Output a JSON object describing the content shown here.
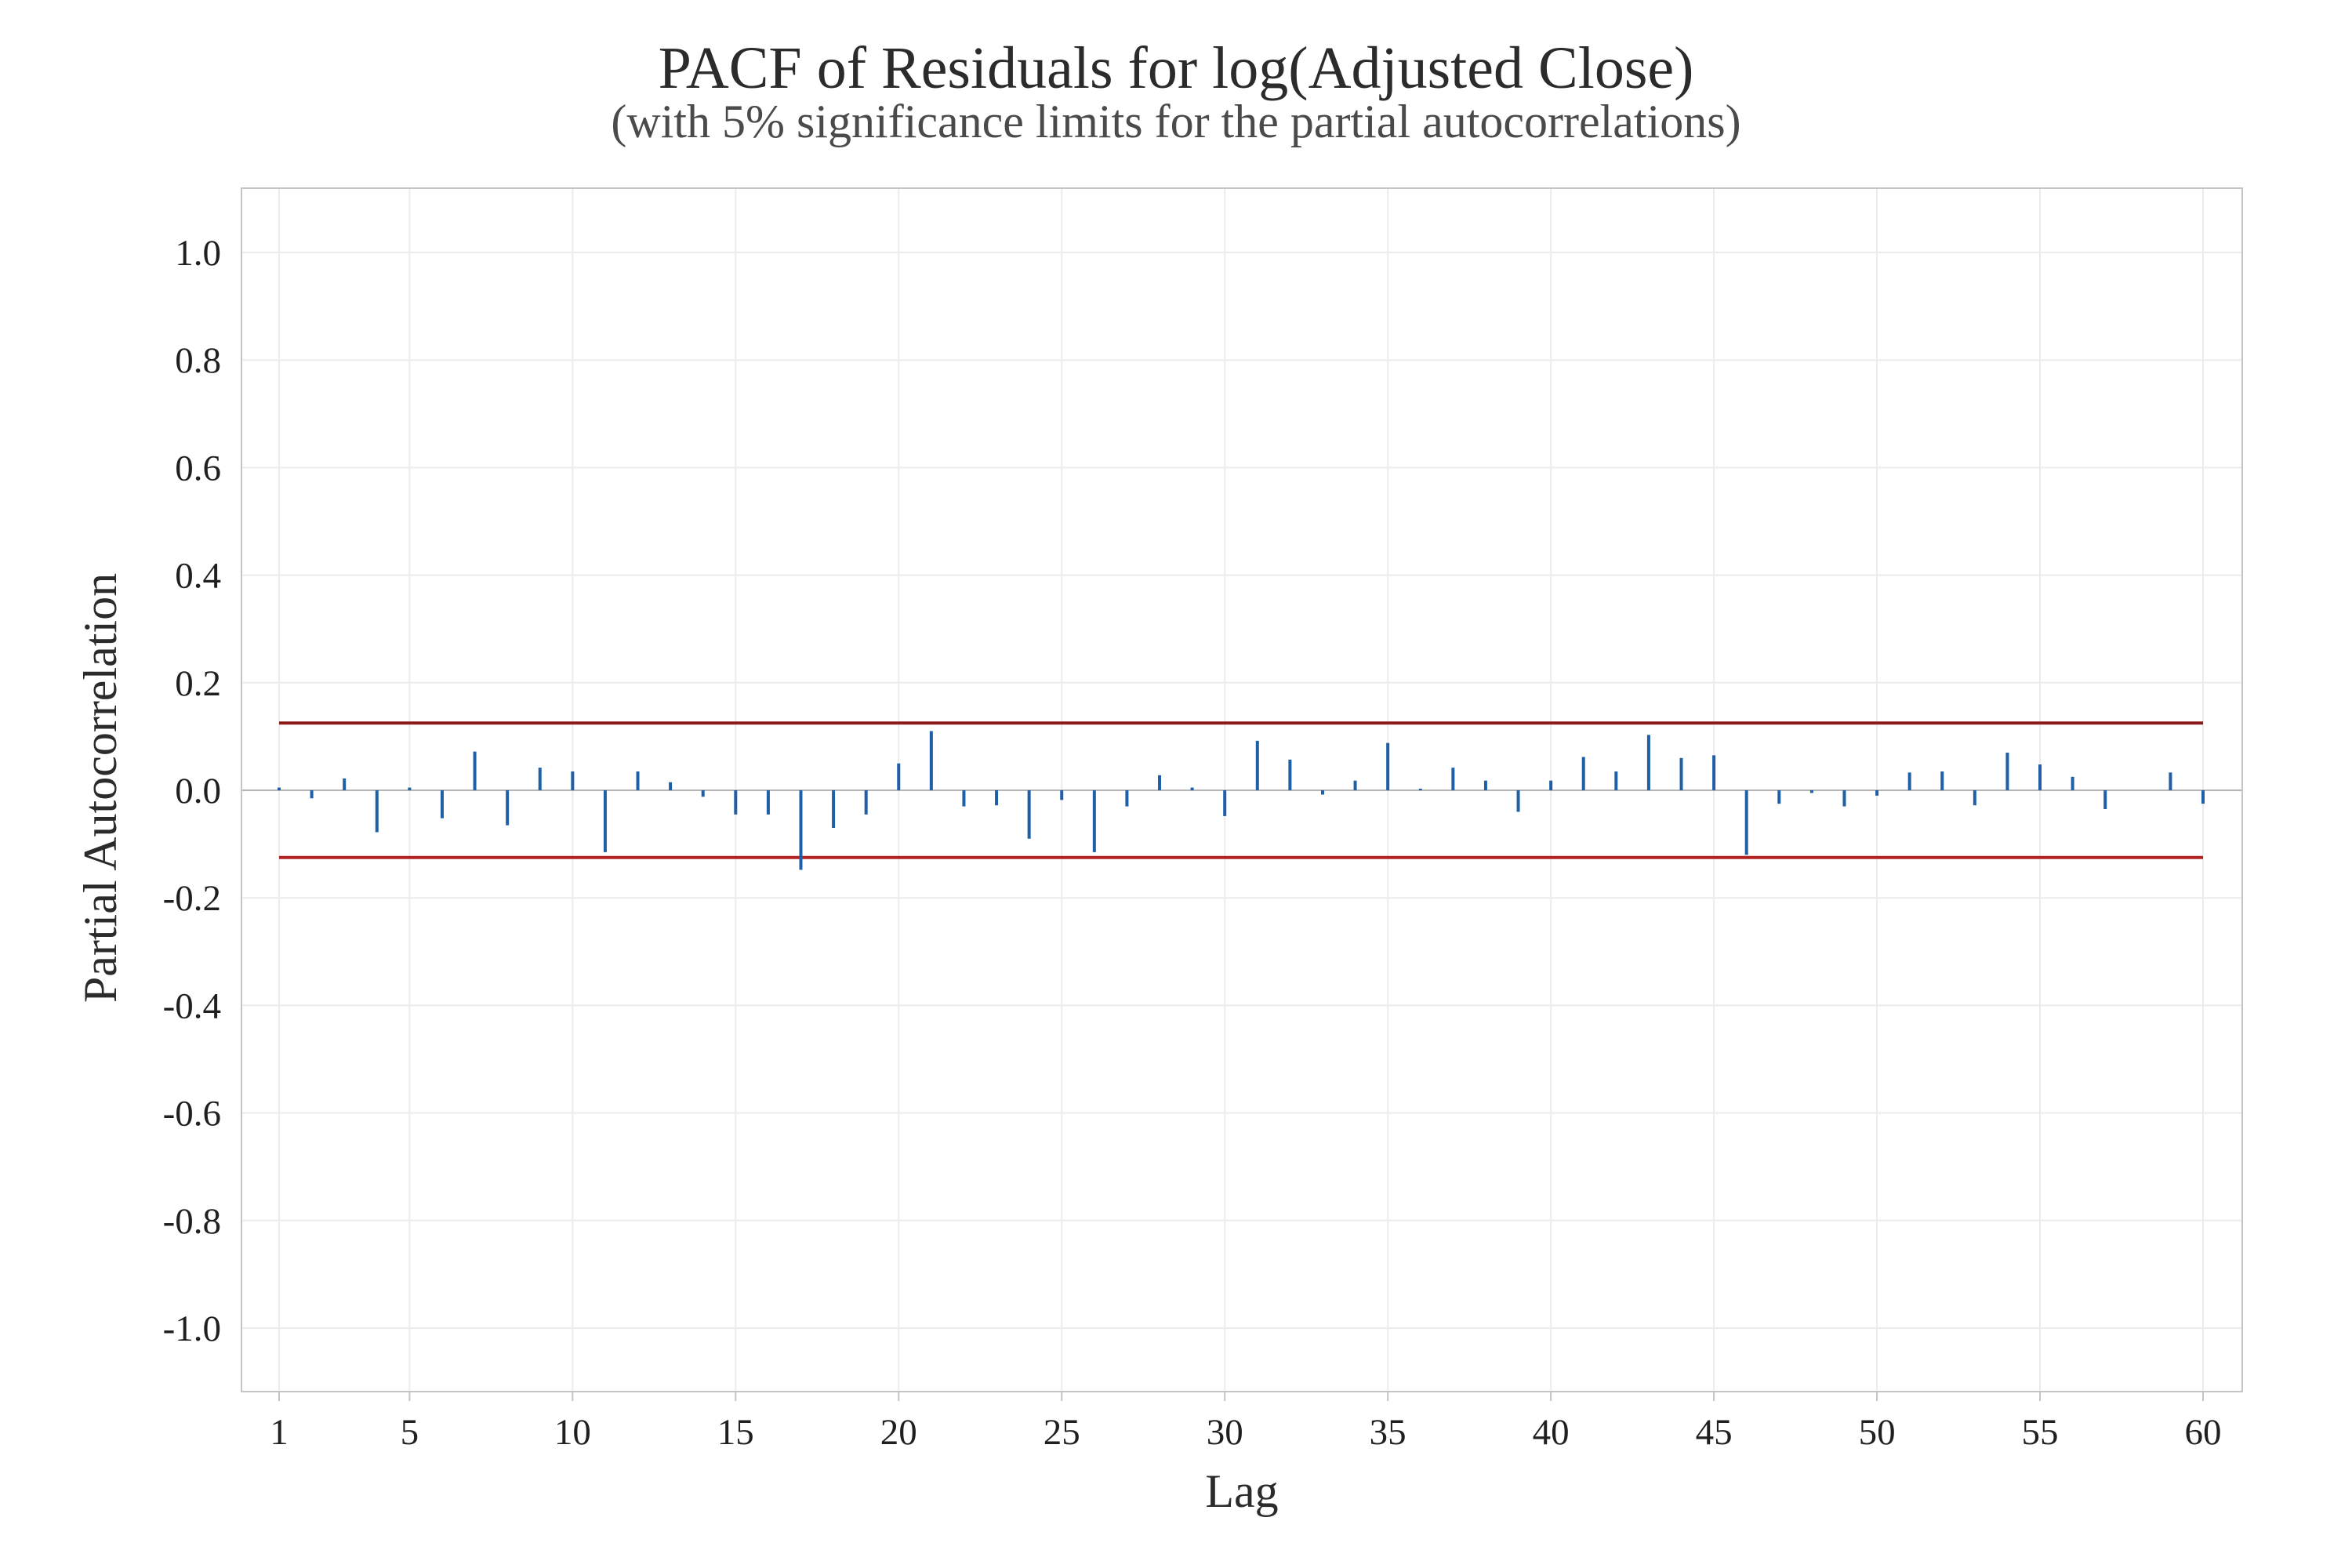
{
  "chart_data": {
    "type": "bar",
    "style": "stem",
    "title": "PACF of Residuals for log(Adjusted Close)",
    "subtitle": "(with 5% significance limits for the partial autocorrelations)",
    "xlabel": "Lag",
    "ylabel": "Partial Autocorrelation",
    "xlim": [
      1,
      60
    ],
    "ylim": [
      -1.1,
      1.1
    ],
    "x_ticks": [
      "1",
      "5",
      "10",
      "15",
      "20",
      "25",
      "30",
      "35",
      "40",
      "45",
      "50",
      "55",
      "60"
    ],
    "x_tick_values": [
      1,
      5,
      10,
      15,
      20,
      25,
      30,
      35,
      40,
      45,
      50,
      55,
      60
    ],
    "y_ticks": [
      "1.0",
      "0.8",
      "0.6",
      "0.4",
      "0.2",
      "0.0",
      "-0.2",
      "-0.4",
      "-0.6",
      "-0.8",
      "-1.0"
    ],
    "y_tick_values": [
      1.0,
      0.8,
      0.6,
      0.4,
      0.2,
      0.0,
      -0.2,
      -0.4,
      -0.6,
      -0.8,
      -1.0
    ],
    "grid": true,
    "significance_limits": [
      0.125,
      -0.125
    ],
    "series": [
      {
        "lags": [
          1,
          2,
          3,
          4,
          5,
          6,
          7,
          8,
          9,
          10,
          11,
          12,
          13,
          14,
          15,
          16,
          17,
          18,
          19,
          20,
          21,
          22,
          23,
          24,
          25,
          26,
          27,
          28,
          29,
          30,
          31,
          32,
          33,
          34,
          35,
          36,
          37,
          38,
          39,
          40,
          41,
          42,
          43,
          44,
          45,
          46,
          47,
          48,
          49,
          50,
          51,
          52,
          53,
          54,
          55,
          56,
          57,
          58,
          59,
          60
        ],
        "values": [
          0.005,
          -0.015,
          0.022,
          -0.078,
          0.005,
          -0.052,
          0.072,
          -0.065,
          0.042,
          0.035,
          -0.115,
          0.035,
          0.015,
          -0.012,
          -0.045,
          -0.045,
          -0.148,
          -0.07,
          -0.045,
          0.05,
          0.11,
          -0.03,
          -0.028,
          -0.09,
          -0.018,
          -0.115,
          -0.03,
          0.028,
          0.005,
          -0.048,
          0.092,
          0.057,
          -0.008,
          0.018,
          0.088,
          0.003,
          0.042,
          0.018,
          -0.04,
          0.018,
          0.062,
          0.035,
          0.103,
          0.06,
          0.065,
          -0.12,
          -0.025,
          -0.005,
          -0.03,
          -0.01,
          0.033,
          0.035,
          -0.028,
          0.07,
          0.048,
          0.025,
          -0.035,
          0.0,
          0.033,
          -0.025
        ]
      }
    ],
    "colors": {
      "stem": "#1f5fa8",
      "limit_upper": "#8b1a1a",
      "limit_lower": "#b22222",
      "zero_line": "#b5b5b5",
      "grid": "#ececec",
      "frame": "#c4c4c4"
    }
  }
}
